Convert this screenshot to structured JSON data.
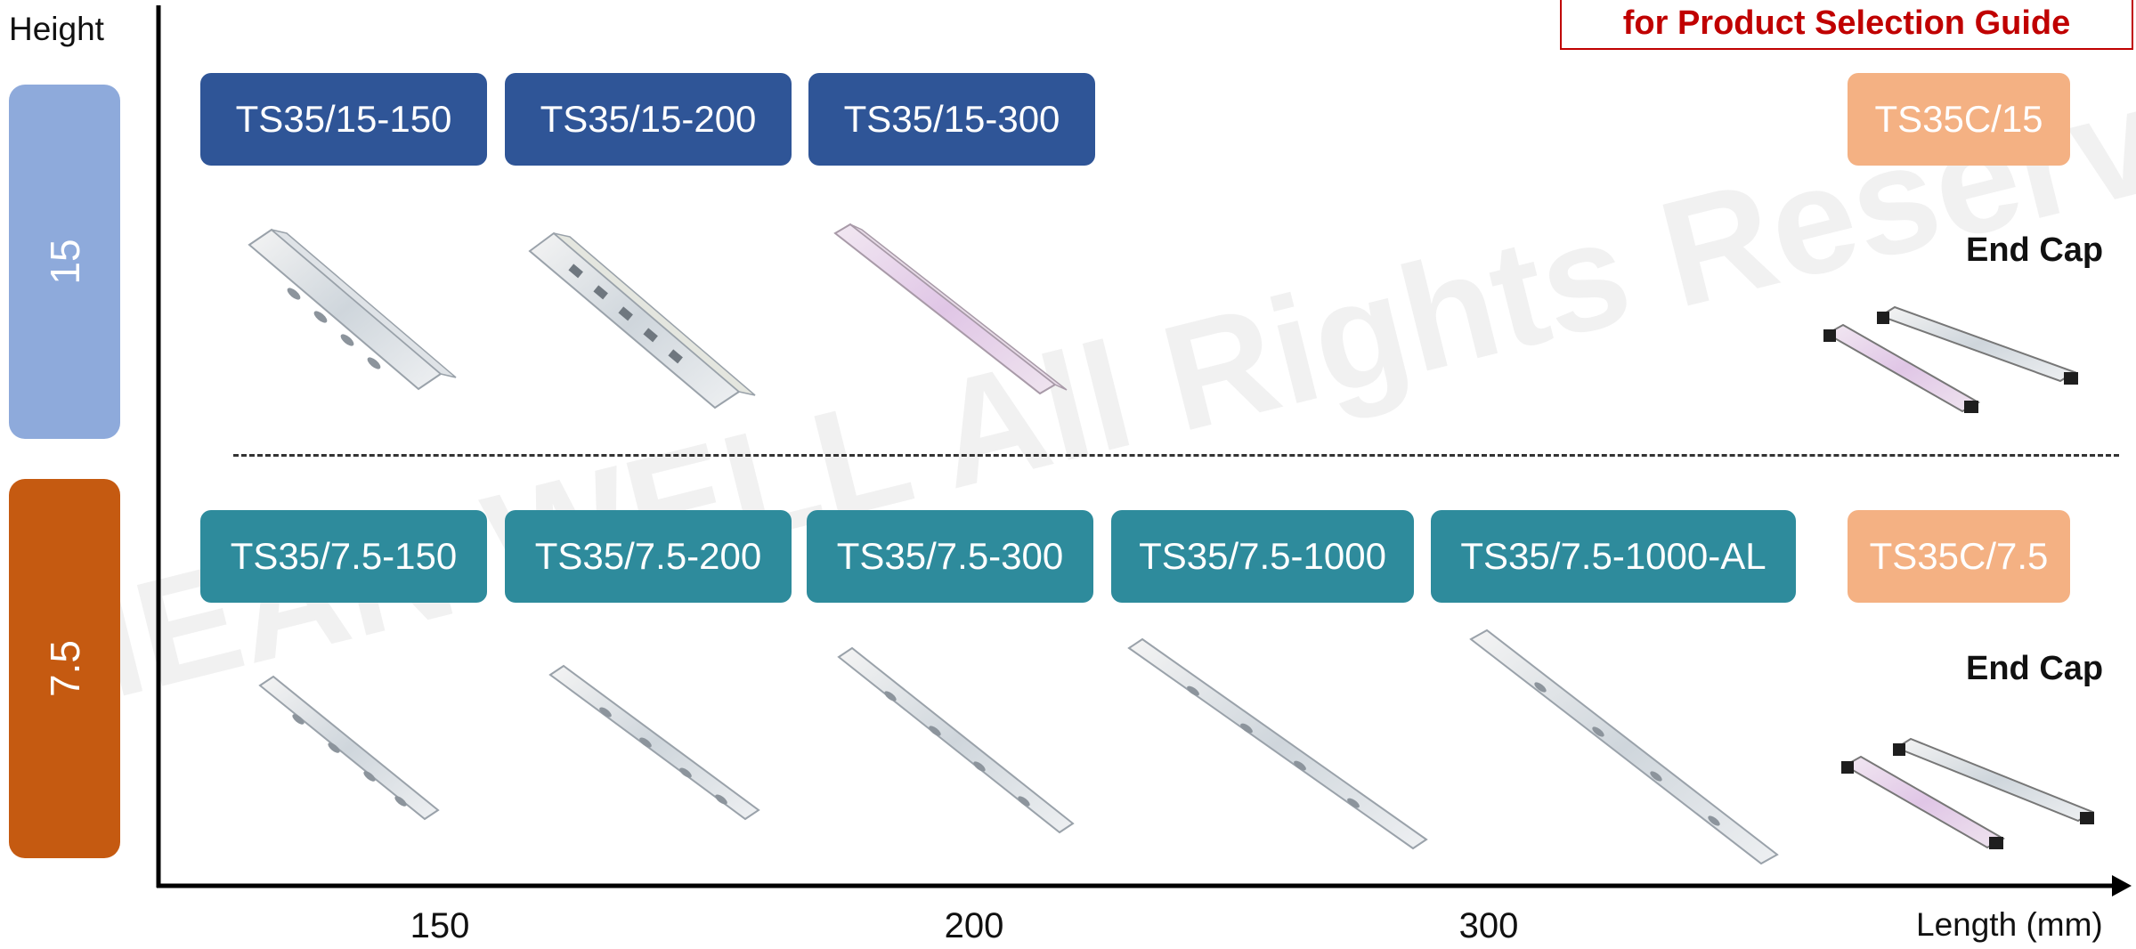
{
  "guide_link": "for Product Selection Guide",
  "watermark": "MEAN WELL All Rights Reserved",
  "y_axis_title": "Height",
  "x_axis_title": "Length (mm)",
  "heights": [
    "15",
    "7.5"
  ],
  "length_ticks": [
    "150",
    "200",
    "300"
  ],
  "row_15": {
    "products": [
      "TS35/15-150",
      "TS35/15-200",
      "TS35/15-300"
    ],
    "end_cap": "TS35C/15",
    "end_cap_label": "End Cap"
  },
  "row_75": {
    "products": [
      "TS35/7.5-150",
      "TS35/7.5-200",
      "TS35/7.5-300",
      "TS35/7.5-1000",
      "TS35/7.5-1000-AL"
    ],
    "end_cap": "TS35C/7.5",
    "end_cap_label": "End Cap"
  },
  "colors": {
    "height_15": "#8eaadb",
    "height_75": "#c55a11",
    "product_15": "#2f5597",
    "product_75": "#2e8b9c",
    "end_cap": "#f4b183",
    "guide_border": "#c00000"
  }
}
